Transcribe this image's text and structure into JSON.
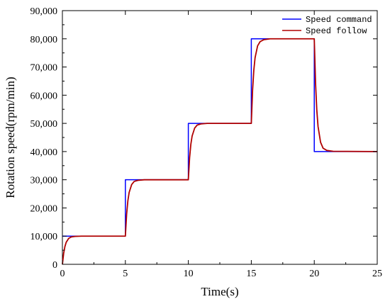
{
  "chart_data": {
    "type": "line",
    "title": "",
    "xlabel": "Time(s)",
    "ylabel": "Rotation speed(rpm/min)",
    "xlim": [
      0,
      25
    ],
    "ylim": [
      0,
      90000
    ],
    "x_ticks": [
      0,
      5,
      10,
      15,
      20,
      25
    ],
    "x_tick_labels": [
      "0",
      "5",
      "10",
      "15",
      "20",
      "25"
    ],
    "y_ticks": [
      0,
      10000,
      20000,
      30000,
      40000,
      50000,
      60000,
      70000,
      80000,
      90000
    ],
    "y_tick_labels": [
      "0",
      "10,000",
      "20,000",
      "30,000",
      "40,000",
      "50,000",
      "60,000",
      "70,000",
      "80,000",
      "90,000"
    ],
    "grid": false,
    "legend_position": "top-right",
    "series": [
      {
        "name": "Speed command",
        "color": "#0000ff",
        "x": [
          0,
          5,
          5,
          10,
          10,
          15,
          15,
          20,
          20,
          25
        ],
        "y": [
          10000,
          10000,
          30000,
          30000,
          50000,
          50000,
          80000,
          80000,
          40000,
          40000
        ]
      },
      {
        "name": "Speed follow",
        "color": "#b00000",
        "x": [
          0,
          0.1,
          0.2,
          0.3,
          0.5,
          0.7,
          1.0,
          1.5,
          5.0,
          5.1,
          5.2,
          5.3,
          5.5,
          5.7,
          6.0,
          6.5,
          10.0,
          10.1,
          10.2,
          10.3,
          10.5,
          10.7,
          11.0,
          11.5,
          15.0,
          15.1,
          15.2,
          15.3,
          15.5,
          15.7,
          16.0,
          16.5,
          20.0,
          20.1,
          20.2,
          20.3,
          20.5,
          20.7,
          21.0,
          21.5,
          25.0
        ],
        "y": [
          0,
          3900,
          6300,
          7800,
          9200,
          9700,
          9900,
          10000,
          10000,
          17800,
          22600,
          25500,
          28300,
          29400,
          29800,
          30000,
          30000,
          37800,
          42600,
          45500,
          48300,
          49400,
          49800,
          50000,
          50000,
          61700,
          68900,
          73300,
          77500,
          79000,
          79700,
          80000,
          80000,
          64400,
          54800,
          48900,
          43300,
          41200,
          40400,
          40100,
          40000
        ]
      }
    ]
  }
}
